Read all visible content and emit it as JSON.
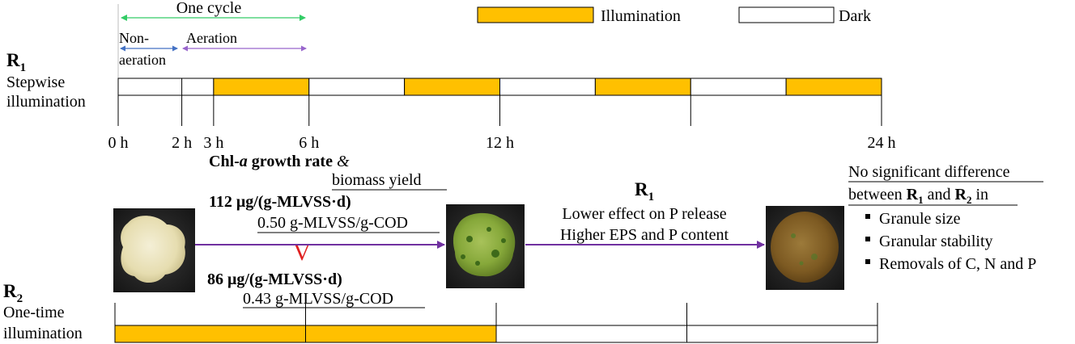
{
  "legend": {
    "illumination": "Illumination",
    "dark": "Dark",
    "illumination_color": "#FFC000",
    "dark_color": "#FFFFFF"
  },
  "cycle": {
    "one_cycle": "One cycle",
    "non_aeration_line1": "Non-",
    "non_aeration_line2": "aeration",
    "aeration": "Aeration",
    "one_cycle_arrow_color": "#33CC66",
    "non_aeration_arrow_color": "#4472C4",
    "aeration_arrow_color": "#9966CC"
  },
  "r1": {
    "label": "R",
    "sub": "1",
    "desc_line1": "Stepwise",
    "desc_line2": "illumination",
    "segments": [
      {
        "start_h": 0,
        "end_h": 3,
        "state": "dark"
      },
      {
        "start_h": 3,
        "end_h": 6,
        "state": "illumination"
      },
      {
        "start_h": 6,
        "end_h": 9,
        "state": "dark"
      },
      {
        "start_h": 9,
        "end_h": 12,
        "state": "illumination"
      },
      {
        "start_h": 12,
        "end_h": 15,
        "state": "dark"
      },
      {
        "start_h": 15,
        "end_h": 18,
        "state": "illumination"
      },
      {
        "start_h": 18,
        "end_h": 21,
        "state": "dark"
      },
      {
        "start_h": 21,
        "end_h": 24,
        "state": "illumination"
      }
    ],
    "ticks": [
      {
        "hour": 0,
        "label": "0 h"
      },
      {
        "hour": 2,
        "label": "2 h"
      },
      {
        "hour": 3,
        "label": "3 h"
      },
      {
        "hour": 6,
        "label": "6 h"
      },
      {
        "hour": 12,
        "label": "12 h"
      },
      {
        "hour": 18,
        "label": ""
      },
      {
        "hour": 24,
        "label": "24 h"
      }
    ]
  },
  "r2": {
    "label": "R",
    "sub": "2",
    "desc_line1": "One-time",
    "desc_line2": "illumination",
    "segments": [
      {
        "start_h": 0,
        "end_h": 12,
        "state": "illumination"
      },
      {
        "start_h": 12,
        "end_h": 24,
        "state": "dark"
      }
    ],
    "ticks": [
      0,
      6,
      12,
      18,
      24
    ]
  },
  "growth": {
    "title_bold1": "Chl-",
    "title_italic": "a",
    "title_bold2": " growth rate",
    "title_amp": " &",
    "subtitle": "biomass yield",
    "r1_rate": "112 μg/(g-MLVSS·d)",
    "r1_yield": "0.50 g-MLVSS/g-COD",
    "r2_rate": "86 μg/(g-MLVSS·d)",
    "r2_yield": "0.43 g-MLVSS/g-COD",
    "comparison_symbol": "V",
    "comparison_color": "#E02020",
    "arrow_color": "#7030A0"
  },
  "effects": {
    "label": "R",
    "sub": "1",
    "line1": "Lower effect on P release",
    "line2": "Higher EPS and P content"
  },
  "summary": {
    "line1": "No significant difference",
    "line2_pre": "between ",
    "r1": "R",
    "r1_sub": "1",
    "and": " and ",
    "r2": "R",
    "r2_sub": "2",
    "line2_post": " in",
    "bullets": [
      "Granule size",
      "Granular stability",
      "Removals of C, N and P"
    ]
  },
  "images": {
    "granule_initial": "granule-white",
    "granule_mid": "granule-green",
    "granule_final": "granule-brown"
  }
}
